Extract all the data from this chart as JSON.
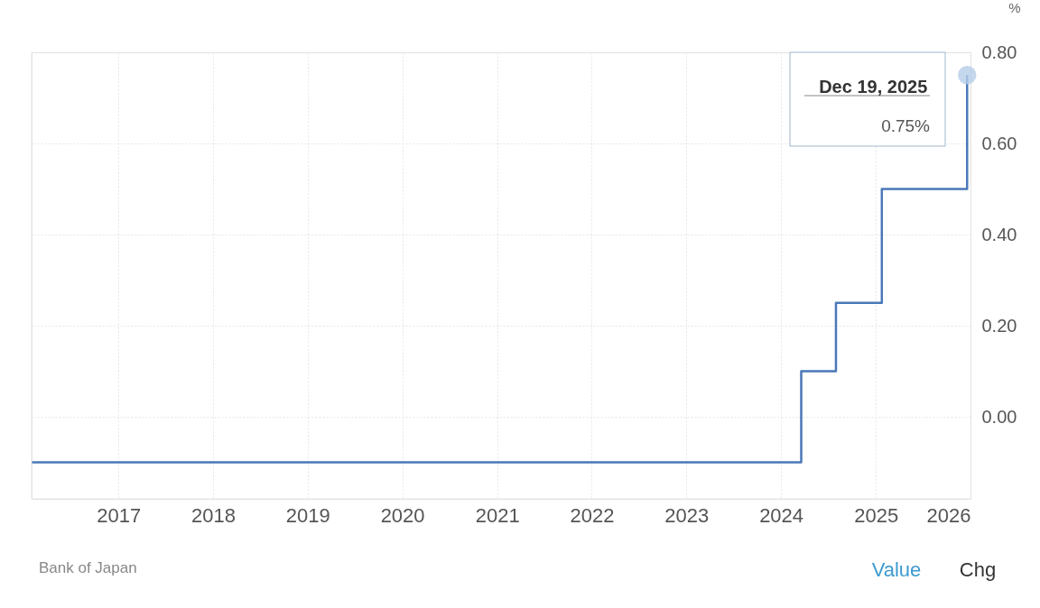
{
  "chart_data": {
    "type": "step",
    "ylabel": "%",
    "x": [
      "2016-02-01",
      "2024-03-19",
      "2024-07-31",
      "2025-01-24",
      "2025-12-19"
    ],
    "series": [
      {
        "color": "#4a78b8",
        "values": [
          -0.1,
          0.1,
          0.25,
          0.5,
          0.75
        ]
      }
    ],
    "xlim": [
      "2016-02-01",
      "2026-01-01"
    ],
    "xticks": [
      {
        "value": "2017",
        "label": "2017"
      },
      {
        "value": "2018",
        "label": "2018"
      },
      {
        "value": "2019",
        "label": "2019"
      },
      {
        "value": "2020",
        "label": "2020"
      },
      {
        "value": "2021",
        "label": "2021"
      },
      {
        "value": "2022",
        "label": "2022"
      },
      {
        "value": "2023",
        "label": "2023"
      },
      {
        "value": "2024",
        "label": "2024"
      },
      {
        "value": "2025",
        "label": "2025"
      },
      {
        "value": "2026",
        "label": "2026"
      }
    ],
    "ylim": [
      -0.18,
      0.8
    ],
    "yticks": [
      {
        "value": 0,
        "label": "0.00"
      },
      {
        "value": 0.2,
        "label": "0.20"
      },
      {
        "value": 0.4,
        "label": "0.40"
      },
      {
        "value": 0.6,
        "label": "0.60"
      },
      {
        "value": 0.8,
        "label": "0.80"
      }
    ],
    "grid": true,
    "line_style": "solid",
    "annotations": [
      {
        "text": "Dec 19, 2025",
        "x": "2025-12-19",
        "y": 0.75
      },
      "0.75%",
      "Bank of Japan",
      "Value",
      "Chg"
    ]
  }
}
